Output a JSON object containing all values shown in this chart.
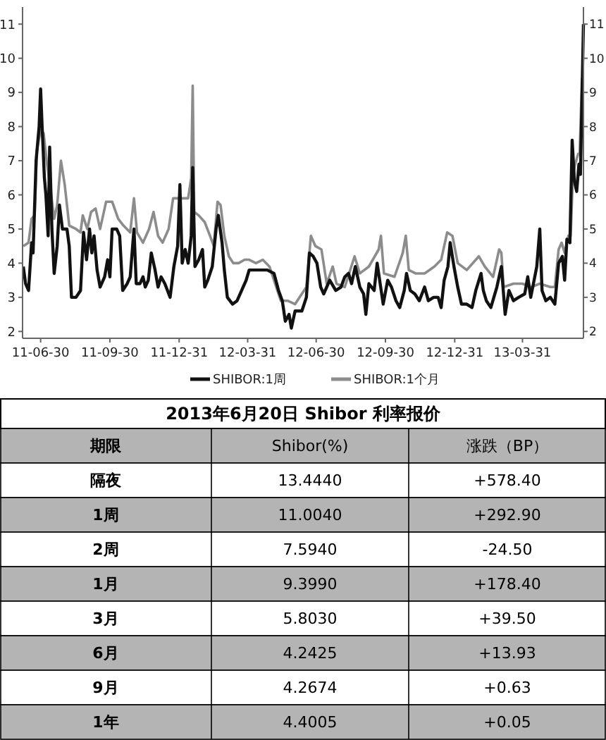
{
  "chart_data": [
    {
      "type": "line",
      "legend": "bottom",
      "xlim": [
        "2011-06-06",
        "2013-06-20"
      ],
      "ylim": [
        1.8,
        11.5
      ],
      "yticks": [
        2,
        3,
        4,
        5,
        6,
        7,
        8,
        9,
        10,
        11
      ],
      "y2lim": [
        1.8,
        11.5
      ],
      "y2ticks": [
        2,
        3,
        4,
        5,
        6,
        7,
        8,
        9,
        10,
        11
      ],
      "xticks": [
        {
          "value": "2011-06-30",
          "label": "11-06-30"
        },
        {
          "value": "2011-09-30",
          "label": "11-09-30"
        },
        {
          "value": "2011-12-31",
          "label": "11-12-31"
        },
        {
          "value": "2012-03-31",
          "label": "12-03-31"
        },
        {
          "value": "2012-06-30",
          "label": "12-06-30"
        },
        {
          "value": "2012-09-30",
          "label": "12-09-30"
        },
        {
          "value": "2012-12-31",
          "label": "12-12-31"
        },
        {
          "value": "2013-03-31",
          "label": "13-03-31"
        }
      ],
      "series": [
        {
          "name": "SHIBOR:1周",
          "color": "#111111",
          "x": [
            "2011-06-07",
            "2011-06-10",
            "2011-06-14",
            "2011-06-18",
            "2011-06-20",
            "2011-06-24",
            "2011-06-28",
            "2011-06-30",
            "2011-07-02",
            "2011-07-05",
            "2011-07-07",
            "2011-07-10",
            "2011-07-12",
            "2011-07-15",
            "2011-07-18",
            "2011-07-22",
            "2011-07-25",
            "2011-07-29",
            "2011-08-04",
            "2011-08-07",
            "2011-08-10",
            "2011-08-16",
            "2011-08-22",
            "2011-08-26",
            "2011-08-30",
            "2011-09-03",
            "2011-09-06",
            "2011-09-09",
            "2011-09-13",
            "2011-09-17",
            "2011-09-23",
            "2011-09-27",
            "2011-09-30",
            "2011-10-03",
            "2011-10-09",
            "2011-10-13",
            "2011-10-17",
            "2011-10-23",
            "2011-10-27",
            "2011-11-01",
            "2011-11-04",
            "2011-11-09",
            "2011-11-13",
            "2011-11-16",
            "2011-11-20",
            "2011-11-24",
            "2011-11-29",
            "2011-12-03",
            "2011-12-07",
            "2011-12-12",
            "2011-12-19",
            "2011-12-24",
            "2011-12-29",
            "2012-01-01",
            "2012-01-04",
            "2012-01-08",
            "2012-01-12",
            "2012-01-16",
            "2012-01-18",
            "2012-01-21",
            "2012-01-26",
            "2012-01-31",
            "2012-02-03",
            "2012-02-07",
            "2012-02-13",
            "2012-02-18",
            "2012-02-21",
            "2012-02-26",
            "2012-02-29",
            "2012-03-04",
            "2012-03-11",
            "2012-03-17",
            "2012-03-23",
            "2012-03-29",
            "2012-04-02",
            "2012-04-08",
            "2012-04-17",
            "2012-04-26",
            "2012-05-05",
            "2012-05-11",
            "2012-05-16",
            "2012-05-20",
            "2012-05-25",
            "2012-05-28",
            "2012-06-02",
            "2012-06-11",
            "2012-06-17",
            "2012-06-21",
            "2012-06-26",
            "2012-07-01",
            "2012-07-06",
            "2012-07-10",
            "2012-07-18",
            "2012-07-26",
            "2012-08-02",
            "2012-08-07",
            "2012-08-12",
            "2012-08-16",
            "2012-08-21",
            "2012-08-27",
            "2012-09-01",
            "2012-09-04",
            "2012-09-08",
            "2012-09-15",
            "2012-09-19",
            "2012-09-23",
            "2012-09-27",
            "2012-10-03",
            "2012-10-08",
            "2012-10-14",
            "2012-10-19",
            "2012-10-25",
            "2012-10-28",
            "2012-11-02",
            "2012-11-08",
            "2012-11-14",
            "2012-11-21",
            "2012-11-26",
            "2012-12-03",
            "2012-12-09",
            "2012-12-13",
            "2012-12-17",
            "2012-12-22",
            "2012-12-25",
            "2012-12-30",
            "2013-01-04",
            "2013-01-09",
            "2013-01-16",
            "2013-01-23",
            "2013-01-28",
            "2013-02-04",
            "2013-02-07",
            "2013-02-11",
            "2013-02-17",
            "2013-02-25",
            "2013-03-03",
            "2013-03-08",
            "2013-03-13",
            "2013-03-19",
            "2013-03-26",
            "2013-04-03",
            "2013-04-07",
            "2013-04-11",
            "2013-04-19",
            "2013-04-23",
            "2013-04-26",
            "2013-05-01",
            "2013-05-07",
            "2013-05-13",
            "2013-05-18",
            "2013-05-23",
            "2013-05-26",
            "2013-05-29",
            "2013-06-02",
            "2013-06-05",
            "2013-06-08",
            "2013-06-11",
            "2013-06-14",
            "2013-06-16",
            "2013-06-20"
          ],
          "values": [
            3.9,
            3.4,
            3.2,
            4.6,
            4.3,
            7.0,
            8.0,
            9.1,
            8.0,
            6.5,
            6.0,
            4.8,
            7.4,
            5.0,
            3.7,
            4.5,
            5.7,
            5.0,
            5.0,
            4.5,
            3.0,
            3.0,
            3.2,
            4.9,
            4.1,
            5.0,
            4.3,
            4.8,
            3.8,
            3.3,
            3.6,
            4.1,
            3.6,
            5.0,
            5.0,
            4.8,
            3.2,
            3.4,
            3.6,
            5.0,
            3.4,
            3.4,
            3.6,
            3.3,
            3.5,
            4.3,
            3.8,
            3.3,
            3.6,
            3.4,
            3.0,
            3.9,
            4.5,
            6.3,
            4.0,
            4.4,
            4.0,
            4.8,
            6.8,
            3.9,
            4.1,
            4.4,
            3.3,
            3.5,
            3.9,
            5.0,
            5.4,
            4.6,
            3.8,
            3.0,
            2.8,
            2.9,
            3.2,
            3.5,
            3.8,
            3.8,
            3.8,
            3.8,
            3.7,
            3.2,
            2.9,
            2.3,
            2.5,
            2.1,
            2.6,
            2.6,
            3.0,
            4.3,
            4.2,
            4.0,
            3.3,
            3.1,
            3.5,
            3.2,
            3.3,
            3.6,
            3.7,
            3.4,
            3.9,
            3.3,
            3.1,
            2.5,
            3.4,
            3.2,
            4.0,
            3.4,
            2.8,
            3.5,
            3.3,
            2.9,
            2.7,
            3.2,
            3.7,
            3.2,
            3.1,
            2.9,
            3.3,
            2.9,
            3.0,
            3.0,
            2.7,
            3.5,
            3.9,
            4.6,
            3.9,
            3.3,
            2.8,
            2.8,
            2.7,
            3.2,
            3.7,
            3.2,
            2.9,
            2.7,
            3.3,
            3.9,
            2.5,
            3.2,
            2.9,
            3.0,
            3.1,
            3.6,
            3.0,
            3.9,
            5.0,
            3.2,
            2.9,
            3.0,
            2.8,
            4.0,
            4.2,
            3.5,
            4.7,
            4.6,
            7.6,
            6.4,
            6.1,
            6.9,
            6.6,
            11.0
          ]
        },
        {
          "name": "SHIBOR:1个月",
          "color": "#8c8c8c",
          "x": [
            "2011-06-07",
            "2011-06-14",
            "2011-06-18",
            "2011-06-22",
            "2011-06-25",
            "2011-06-30",
            "2011-07-04",
            "2011-07-08",
            "2011-07-13",
            "2011-07-18",
            "2011-07-22",
            "2011-07-27",
            "2011-08-01",
            "2011-08-07",
            "2011-08-16",
            "2011-08-22",
            "2011-08-25",
            "2011-08-31",
            "2011-09-05",
            "2011-09-11",
            "2011-09-17",
            "2011-09-25",
            "2011-10-03",
            "2011-10-11",
            "2011-10-18",
            "2011-10-27",
            "2011-11-01",
            "2011-11-05",
            "2011-11-13",
            "2011-11-21",
            "2011-11-27",
            "2011-12-03",
            "2011-12-09",
            "2011-12-17",
            "2011-12-23",
            "2012-01-02",
            "2012-01-12",
            "2012-01-16",
            "2012-01-18",
            "2012-01-20",
            "2012-01-26",
            "2012-02-03",
            "2012-02-10",
            "2012-02-15",
            "2012-02-20",
            "2012-02-24",
            "2012-02-29",
            "2012-03-06",
            "2012-03-12",
            "2012-03-19",
            "2012-03-27",
            "2012-04-02",
            "2012-04-11",
            "2012-04-20",
            "2012-04-29",
            "2012-05-08",
            "2012-05-14",
            "2012-05-23",
            "2012-06-02",
            "2012-06-08",
            "2012-06-17",
            "2012-06-23",
            "2012-06-29",
            "2012-07-07",
            "2012-07-14",
            "2012-07-22",
            "2012-07-27",
            "2012-08-07",
            "2012-08-20",
            "2012-08-27",
            "2012-09-08",
            "2012-09-21",
            "2012-09-24",
            "2012-09-28",
            "2012-10-12",
            "2012-10-23",
            "2012-10-27",
            "2012-10-31",
            "2012-11-09",
            "2012-11-21",
            "2012-12-04",
            "2012-12-13",
            "2012-12-21",
            "2012-12-28",
            "2013-01-04",
            "2013-01-16",
            "2013-02-01",
            "2013-02-09",
            "2013-02-20",
            "2013-02-28",
            "2013-03-03",
            "2013-03-06",
            "2013-03-19",
            "2013-03-31",
            "2013-04-12",
            "2013-04-23",
            "2013-05-07",
            "2013-05-13",
            "2013-05-18",
            "2013-05-22",
            "2013-05-26",
            "2013-05-31",
            "2013-06-03",
            "2013-06-06",
            "2013-06-09",
            "2013-06-13",
            "2013-06-15",
            "2013-06-18",
            "2013-06-20"
          ],
          "values": [
            4.5,
            4.6,
            5.3,
            5.4,
            7.3,
            7.9,
            7.8,
            7.0,
            6.2,
            5.3,
            5.7,
            7.0,
            6.3,
            5.1,
            5.0,
            4.9,
            5.4,
            5.0,
            5.5,
            5.6,
            5.0,
            5.8,
            5.8,
            5.3,
            5.1,
            4.9,
            5.9,
            4.9,
            4.6,
            5.0,
            5.5,
            4.8,
            4.6,
            5.0,
            5.9,
            5.9,
            5.9,
            6.5,
            9.2,
            5.5,
            5.4,
            5.2,
            4.8,
            4.5,
            5.8,
            5.7,
            4.8,
            4.2,
            4.0,
            4.0,
            4.1,
            4.1,
            4.0,
            4.1,
            3.9,
            3.3,
            2.9,
            2.9,
            2.8,
            3.0,
            3.3,
            4.8,
            4.5,
            4.4,
            3.4,
            3.9,
            3.4,
            3.3,
            4.2,
            3.7,
            3.9,
            4.4,
            4.8,
            3.7,
            3.6,
            4.3,
            4.8,
            3.8,
            3.7,
            3.7,
            3.9,
            4.1,
            4.9,
            4.8,
            4.0,
            3.8,
            4.2,
            3.9,
            3.6,
            4.4,
            4.3,
            3.3,
            3.4,
            3.4,
            3.3,
            3.4,
            3.3,
            3.3,
            4.4,
            4.6,
            4.3,
            4.8,
            4.8,
            6.6,
            6.9,
            7.2,
            7.2,
            9.4,
            9.4
          ]
        }
      ]
    },
    {
      "type": "other",
      "title": "2013年6月20日 Shibor 利率报价",
      "categories": [
        "期限",
        "Shibor(%)",
        "涨跌（BP）"
      ],
      "y_categories": [
        "隔夜",
        "1周",
        "2周",
        "1月",
        "3月",
        "6月",
        "9月",
        "1年"
      ],
      "cell_labels": [
        [
          "13.4440",
          "+578.40"
        ],
        [
          "11.0040",
          "+292.90"
        ],
        [
          "7.5940",
          "-24.50"
        ],
        [
          "9.3990",
          "+178.40"
        ],
        [
          "5.8030",
          "+39.50"
        ],
        [
          "4.2425",
          "+13.93"
        ],
        [
          "4.2674",
          "+0.63"
        ],
        [
          "4.4005",
          "+0.05"
        ]
      ]
    }
  ]
}
